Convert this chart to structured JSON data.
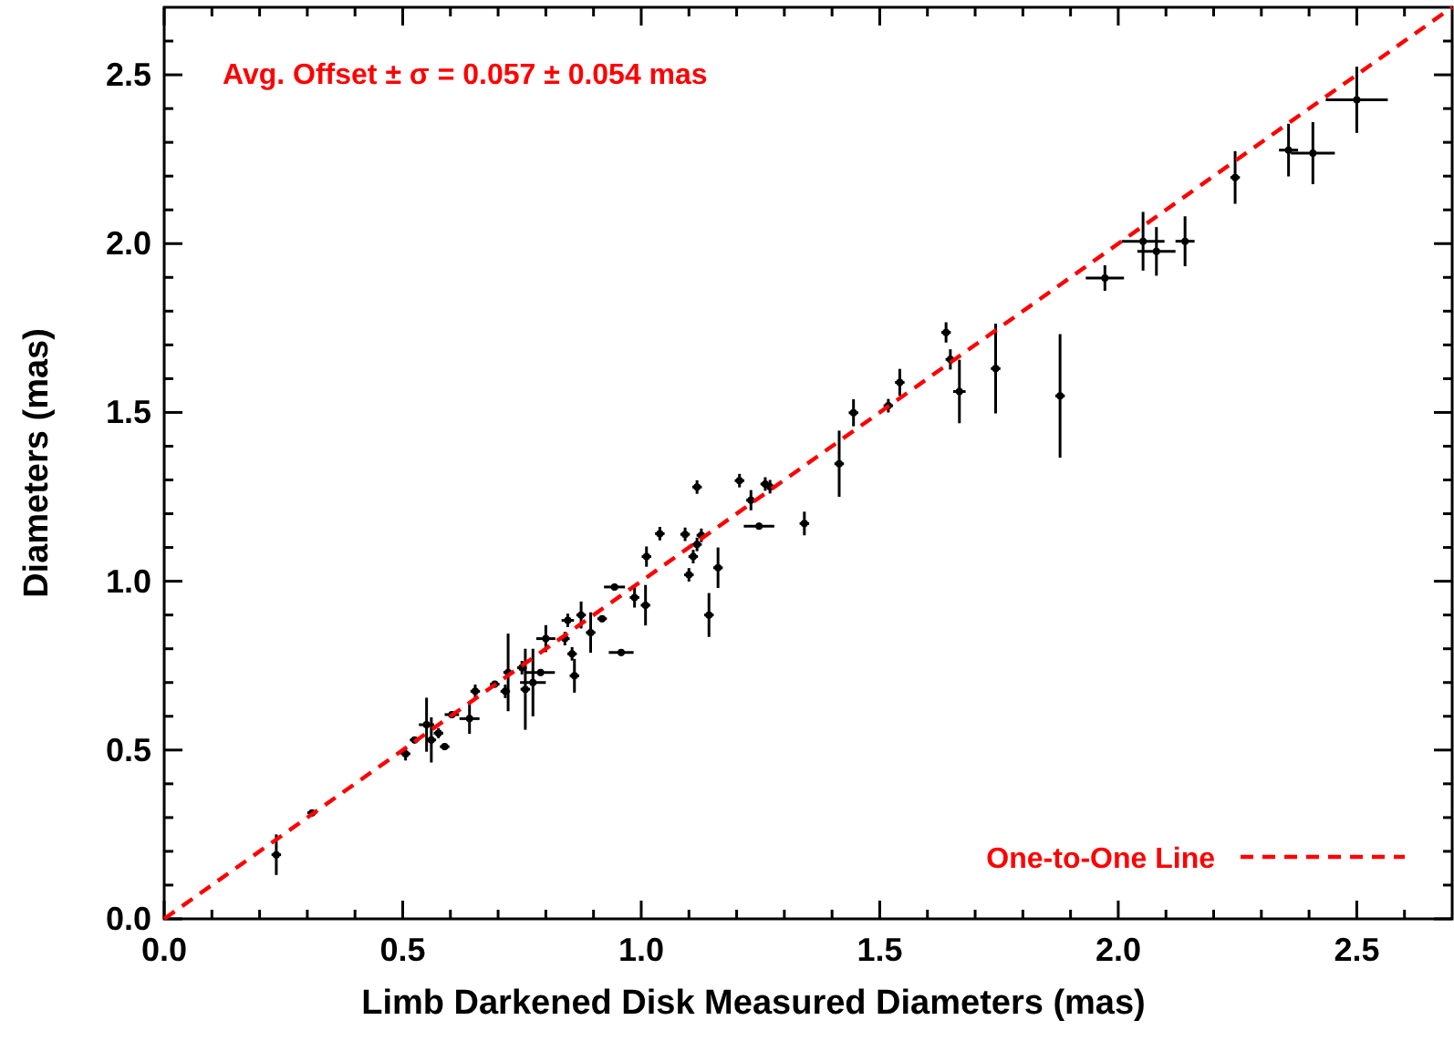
{
  "chart_data": {
    "type": "scatter",
    "xlabel": "Limb Darkened Disk Measured Diameters (mas)",
    "ylabel": "Diameters (mas)",
    "annotations": [
      "Avg. Offset ± σ = 0.057 ± 0.054 mas"
    ],
    "xlim": [
      0,
      2.7
    ],
    "ylim": [
      0,
      2.7
    ],
    "xticks": [
      {
        "value": 0,
        "label": "0.0"
      },
      {
        "value": 0.1,
        "label": null
      },
      {
        "value": 0.2,
        "label": null
      },
      {
        "value": 0.3,
        "label": null
      },
      {
        "value": 0.4,
        "label": null
      },
      {
        "value": 0.5,
        "label": "0.5"
      },
      {
        "value": 0.6,
        "label": null
      },
      {
        "value": 0.7,
        "label": null
      },
      {
        "value": 0.8,
        "label": null
      },
      {
        "value": 0.9,
        "label": null
      },
      {
        "value": 1,
        "label": "1.0"
      },
      {
        "value": 1.1,
        "label": null
      },
      {
        "value": 1.2,
        "label": null
      },
      {
        "value": 1.3,
        "label": null
      },
      {
        "value": 1.4,
        "label": null
      },
      {
        "value": 1.5,
        "label": "1.5"
      },
      {
        "value": 1.6,
        "label": null
      },
      {
        "value": 1.7,
        "label": null
      },
      {
        "value": 1.8,
        "label": null
      },
      {
        "value": 1.9,
        "label": null
      },
      {
        "value": 2,
        "label": "2.0"
      },
      {
        "value": 2.1,
        "label": null
      },
      {
        "value": 2.2,
        "label": null
      },
      {
        "value": 2.3,
        "label": null
      },
      {
        "value": 2.4,
        "label": null
      },
      {
        "value": 2.5,
        "label": "2.5"
      },
      {
        "value": 2.6,
        "label": null
      }
    ],
    "yticks": [
      {
        "value": 0,
        "label": "0.0"
      },
      {
        "value": 0.1,
        "label": null
      },
      {
        "value": 0.2,
        "label": null
      },
      {
        "value": 0.3,
        "label": null
      },
      {
        "value": 0.4,
        "label": null
      },
      {
        "value": 0.5,
        "label": "0.5"
      },
      {
        "value": 0.6,
        "label": null
      },
      {
        "value": 0.7,
        "label": null
      },
      {
        "value": 0.8,
        "label": null
      },
      {
        "value": 0.9,
        "label": null
      },
      {
        "value": 1,
        "label": "1.0"
      },
      {
        "value": 1.1,
        "label": null
      },
      {
        "value": 1.2,
        "label": null
      },
      {
        "value": 1.3,
        "label": null
      },
      {
        "value": 1.4,
        "label": null
      },
      {
        "value": 1.5,
        "label": "1.5"
      },
      {
        "value": 1.6,
        "label": null
      },
      {
        "value": 1.7,
        "label": null
      },
      {
        "value": 1.8,
        "label": null
      },
      {
        "value": 1.9,
        "label": null
      },
      {
        "value": 2,
        "label": "2.0"
      },
      {
        "value": 2.1,
        "label": null
      },
      {
        "value": 2.2,
        "label": null
      },
      {
        "value": 2.3,
        "label": null
      },
      {
        "value": 2.4,
        "label": null
      },
      {
        "value": 2.5,
        "label": "2.5"
      },
      {
        "value": 2.6,
        "label": null
      }
    ],
    "grid": false,
    "legend": "bottom right",
    "series": [
      {
        "color": "#000000",
        "x": [
          0.235,
          0.31,
          0.506,
          0.525,
          0.55,
          0.56,
          0.575,
          0.588,
          0.603,
          0.64,
          0.652,
          0.693,
          0.715,
          0.721,
          0.75,
          0.757,
          0.773,
          0.789,
          0.8,
          0.84,
          0.846,
          0.855,
          0.86,
          0.874,
          0.894,
          0.918,
          0.944,
          0.958,
          0.986,
          1.009,
          1.011,
          1.039,
          1.092,
          1.1,
          1.109,
          1.117,
          1.117,
          1.126,
          1.142,
          1.161,
          1.206,
          1.23,
          1.247,
          1.26,
          1.27,
          1.342,
          1.415,
          1.445,
          1.518,
          1.542,
          1.639,
          1.648,
          1.667,
          1.743,
          1.878,
          1.972,
          2.052,
          2.08,
          2.14,
          2.245,
          2.357,
          2.408,
          2.5
        ],
        "values": [
          0.19,
          0.314,
          0.489,
          0.53,
          0.575,
          0.53,
          0.55,
          0.51,
          0.605,
          0.593,
          0.674,
          0.695,
          0.674,
          0.73,
          0.744,
          0.68,
          0.7,
          0.73,
          0.83,
          0.83,
          0.884,
          0.785,
          0.72,
          0.9,
          0.848,
          0.889,
          0.983,
          0.789,
          0.952,
          0.929,
          1.073,
          1.141,
          1.139,
          1.019,
          1.073,
          1.279,
          1.109,
          1.136,
          0.9,
          1.04,
          1.298,
          1.24,
          1.163,
          1.288,
          1.28,
          1.171,
          1.348,
          1.499,
          1.52,
          1.589,
          1.737,
          1.657,
          1.562,
          1.63,
          1.549,
          1.898,
          2.007,
          1.977,
          2.007,
          2.196,
          2.277,
          2.268,
          2.426
        ],
        "xerrors": [
          0.01,
          0.01,
          0.01,
          0.01,
          0.016,
          0.01,
          0.01,
          0.01,
          0.015,
          0.021,
          0.01,
          0.01,
          0.01,
          0.01,
          0.01,
          0.01,
          0.027,
          0.03,
          0.02,
          0.01,
          0.013,
          0.01,
          0.01,
          0.01,
          0.01,
          0.01,
          0.022,
          0.026,
          0.01,
          0.01,
          0.01,
          0.01,
          0.01,
          0.01,
          0.01,
          0.01,
          0.01,
          0.01,
          0.01,
          0.01,
          0.01,
          0.01,
          0.032,
          0.01,
          0.01,
          0.01,
          0.01,
          0.01,
          0.01,
          0.01,
          0.01,
          0.01,
          0.013,
          0.01,
          0.01,
          0.04,
          0.045,
          0.04,
          0.02,
          0.01,
          0.02,
          0.046,
          0.065
        ],
        "errors": [
          0.06,
          0.01,
          0.02,
          0.01,
          0.08,
          0.067,
          0.015,
          0.01,
          0.01,
          0.045,
          0.02,
          0.01,
          0.02,
          0.115,
          0.02,
          0.12,
          0.1,
          0.01,
          0.04,
          0.02,
          0.02,
          0.02,
          0.05,
          0.04,
          0.06,
          0.01,
          0.01,
          0.01,
          0.03,
          0.06,
          0.03,
          0.02,
          0.02,
          0.02,
          0.02,
          0.02,
          0.02,
          0.02,
          0.065,
          0.06,
          0.02,
          0.03,
          0.01,
          0.02,
          0.02,
          0.035,
          0.098,
          0.04,
          0.02,
          0.04,
          0.03,
          0.03,
          0.094,
          0.133,
          0.183,
          0.038,
          0.087,
          0.072,
          0.074,
          0.078,
          0.078,
          0.092,
          0.098
        ]
      },
      {
        "type": "line",
        "name": "One-to-One Line",
        "color": "#ff0000",
        "line_style": "dashed",
        "x": [
          0,
          2.7
        ],
        "values": [
          0,
          2.7
        ]
      }
    ]
  }
}
